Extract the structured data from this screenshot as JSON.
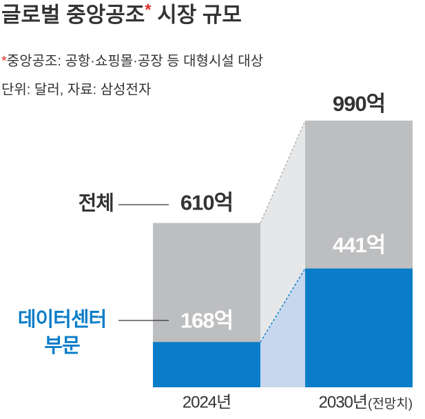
{
  "chart_data": {
    "type": "overlap-bar",
    "title": "글로벌 중앙공조",
    "title_mark": "*",
    "footnote_mark": "*",
    "footnote": "중앙공조: 공항·쇼핑몰·공장 등 대형시설 대상",
    "title_suffix": " 시장 규모",
    "source": "단위: 달러, 자료: 삼성전자",
    "categories": [
      "2024년",
      "2030년"
    ],
    "category_note": "(전망치)",
    "series": [
      {
        "name": "전체",
        "color": "#bdbec0",
        "label_color": "#333333",
        "values": [
          610,
          990
        ],
        "value_labels": [
          "610억",
          "990억"
        ]
      },
      {
        "name": "데이터센터 부문",
        "color": "#0b7dc8",
        "label_color": "#0b7dc8",
        "values": [
          168,
          441
        ],
        "value_labels": [
          "168억",
          "441억"
        ]
      }
    ]
  }
}
